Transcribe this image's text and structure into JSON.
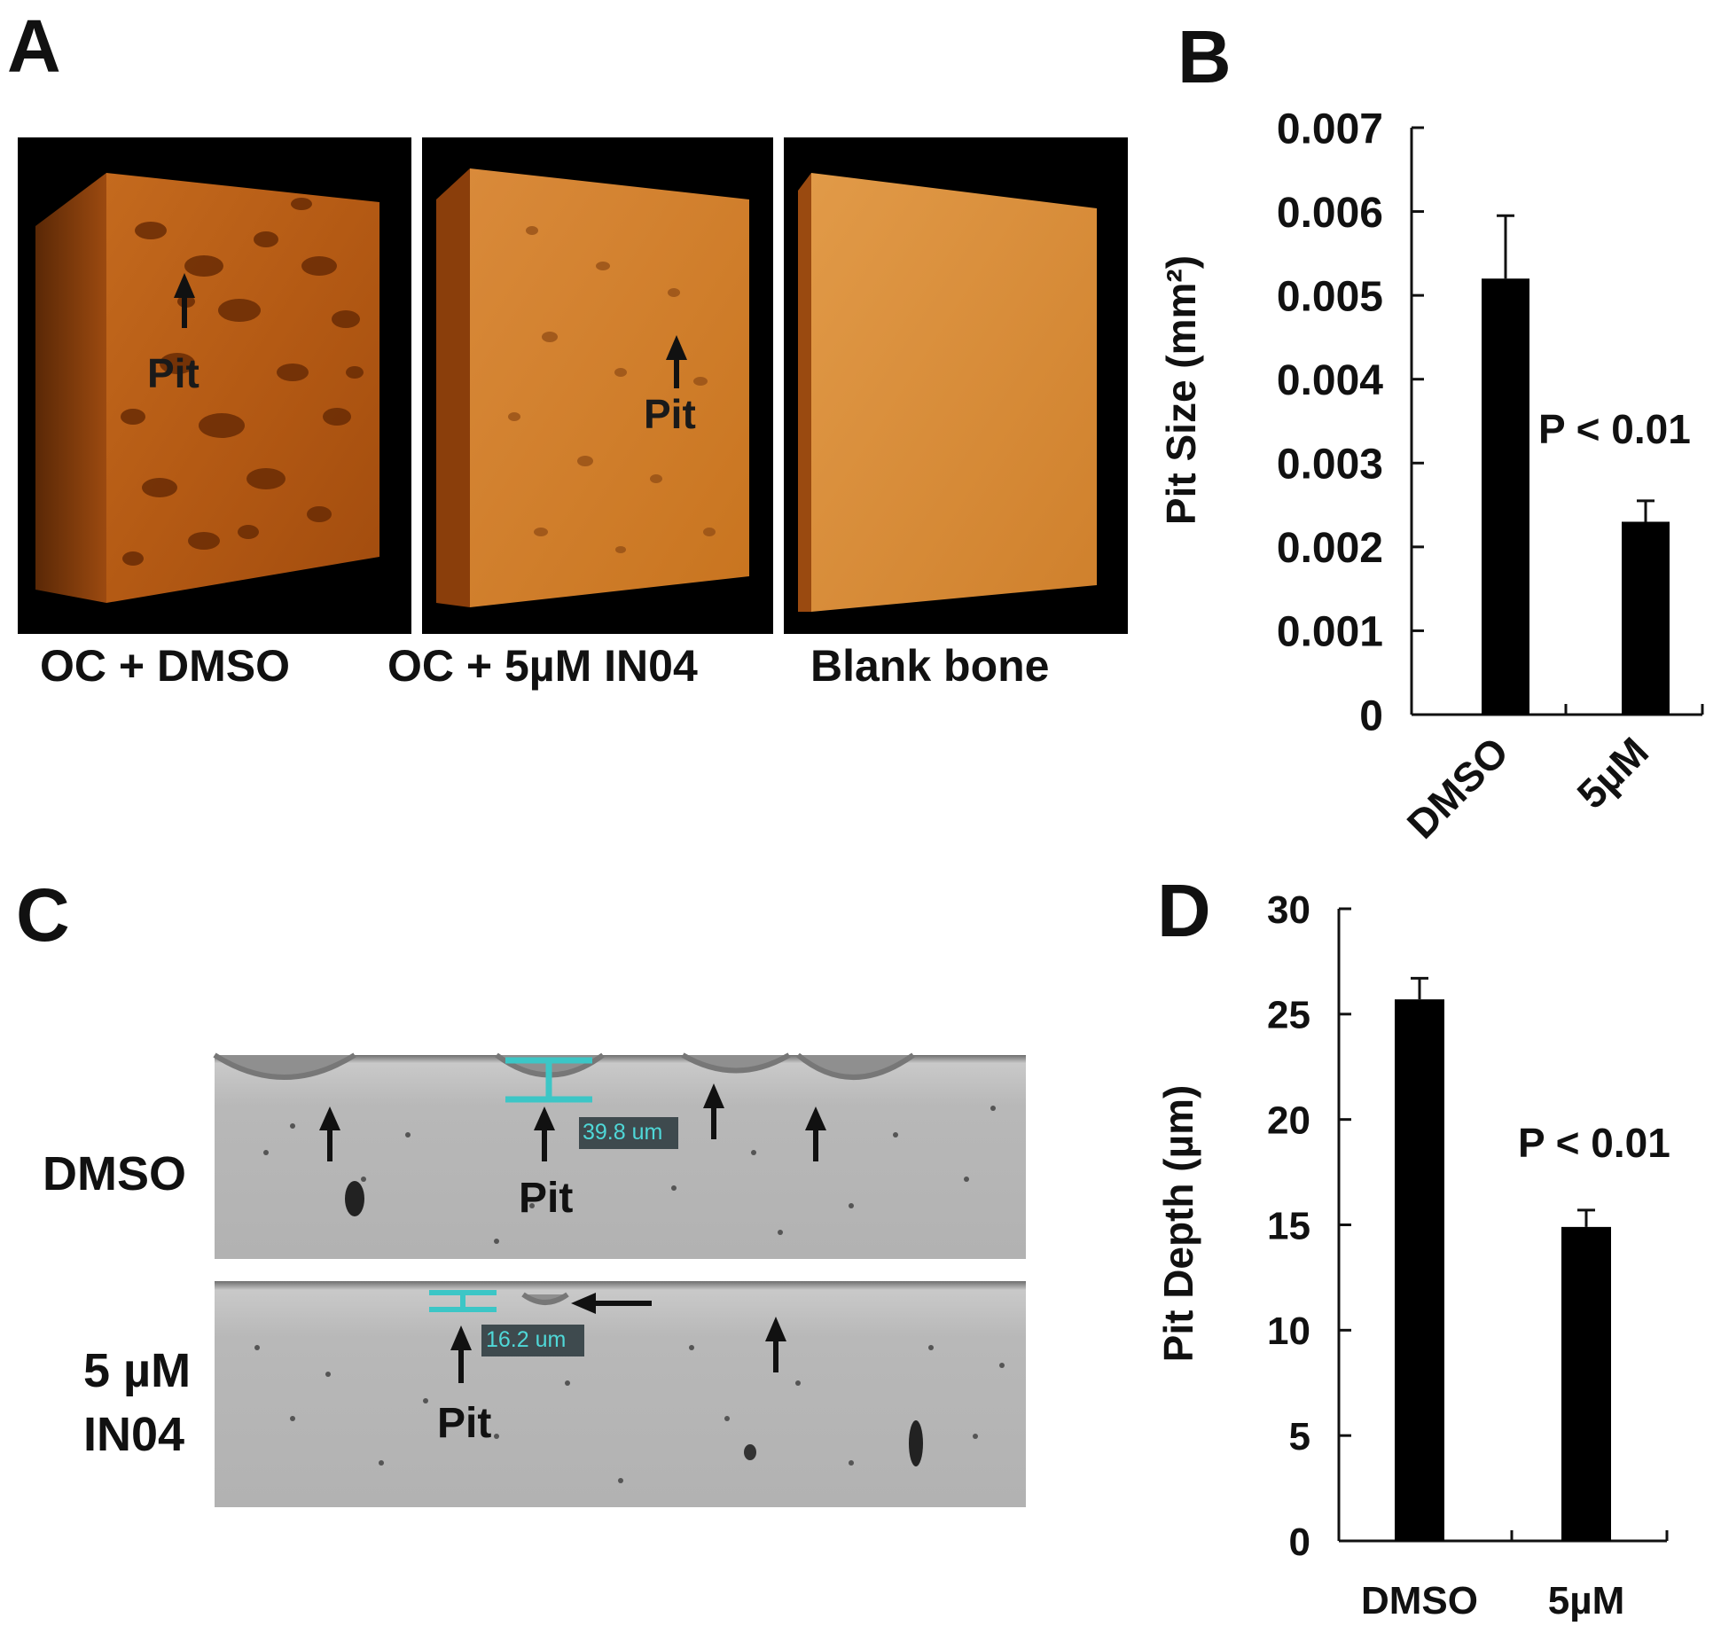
{
  "panels": {
    "a": {
      "letter": "A",
      "images": [
        {
          "caption": "OC + DMSO",
          "pit_label": "Pit"
        },
        {
          "caption": "OC + 5µM IN04",
          "pit_label": "Pit"
        },
        {
          "caption": "Blank bone",
          "pit_label": ""
        }
      ]
    },
    "b": {
      "letter": "B"
    },
    "c": {
      "letter": "C",
      "rows": [
        {
          "label": "DMSO",
          "pit_label": "Pit",
          "measure": "39.8 um"
        },
        {
          "label": "5 µM IN04",
          "pit_label": "Pit",
          "measure": "16.2 um"
        }
      ]
    },
    "d": {
      "letter": "D"
    }
  },
  "chart_data": [
    {
      "panel": "B",
      "type": "bar",
      "categories": [
        "DMSO",
        "5µM"
      ],
      "series": [
        {
          "values": [
            0.0052,
            0.0023
          ],
          "error": [
            0.00075,
            0.00025
          ]
        }
      ],
      "xlabel": "",
      "ylabel": "Pit Size (mm²)",
      "ylim": [
        0,
        0.007
      ],
      "yticks": [
        "0",
        "0.001",
        "0.002",
        "0.003",
        "0.004",
        "0.005",
        "0.006",
        "0.007"
      ],
      "annotation": "P < 0.01",
      "xtick_rotation": "diagonal",
      "bar_color": "#000000"
    },
    {
      "panel": "D",
      "type": "bar",
      "categories": [
        "DMSO",
        "5µM"
      ],
      "series": [
        {
          "values": [
            25.7,
            14.9
          ],
          "error": [
            1.0,
            0.8
          ]
        }
      ],
      "xlabel": "",
      "ylabel": "Pit Depth (µm)",
      "ylim": [
        0,
        30
      ],
      "yticks": [
        "0",
        "5",
        "10",
        "15",
        "20",
        "25",
        "30"
      ],
      "annotation": "P < 0.01",
      "xtick_rotation": "none",
      "bar_color": "#000000"
    }
  ]
}
